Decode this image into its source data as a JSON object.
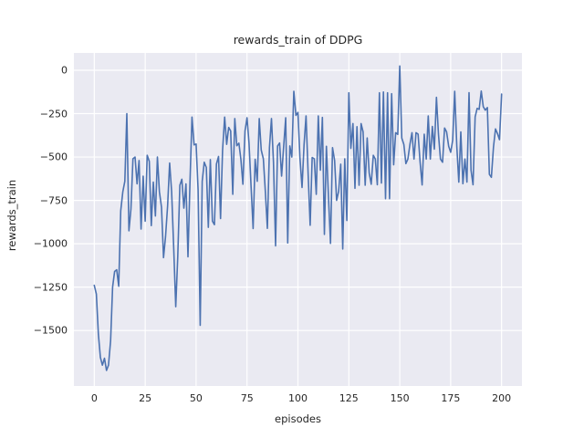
{
  "colors": {
    "figure_bg": "#ffffff",
    "axes_bg": "#eaeaf2",
    "grid": "#ffffff",
    "line": "#4c72b0",
    "text": "#262626"
  },
  "chart_data": {
    "type": "line",
    "title": "rewards_train of DDPG",
    "xlabel": "episodes",
    "ylabel": "rewards_train",
    "grid": true,
    "legend": "none",
    "xlim": [
      -10,
      210
    ],
    "ylim": [
      -1820,
      100
    ],
    "x_tick_values": [
      0,
      25,
      50,
      75,
      100,
      125,
      150,
      175,
      200
    ],
    "x_tick_labels": [
      "0",
      "25",
      "50",
      "75",
      "100",
      "125",
      "150",
      "175",
      "200"
    ],
    "y_tick_values": [
      0,
      -250,
      -500,
      -750,
      -1000,
      -1250,
      -1500
    ],
    "y_tick_labels": [
      "0",
      "−250",
      "−500",
      "−750",
      "−1000",
      "−1250",
      "−1500"
    ],
    "series": [
      {
        "name": "rewards_train",
        "color": "#4c72b0",
        "x_start": 0,
        "x_step": 1,
        "values": [
          -1240,
          -1290,
          -1520,
          -1655,
          -1700,
          -1660,
          -1730,
          -1700,
          -1560,
          -1250,
          -1160,
          -1150,
          -1245,
          -810,
          -700,
          -640,
          -250,
          -925,
          -800,
          -510,
          -500,
          -655,
          -520,
          -915,
          -610,
          -870,
          -490,
          -525,
          -895,
          -645,
          -840,
          -500,
          -700,
          -790,
          -1080,
          -960,
          -780,
          -535,
          -700,
          -1030,
          -1363,
          -1075,
          -663,
          -628,
          -795,
          -655,
          -1075,
          -646,
          -270,
          -430,
          -425,
          -690,
          -1470,
          -640,
          -530,
          -560,
          -905,
          -515,
          -870,
          -890,
          -540,
          -497,
          -855,
          -462,
          -270,
          -427,
          -330,
          -350,
          -715,
          -278,
          -435,
          -420,
          -514,
          -657,
          -350,
          -274,
          -420,
          -675,
          -912,
          -513,
          -640,
          -278,
          -460,
          -510,
          -700,
          -911,
          -445,
          -278,
          -530,
          -1012,
          -436,
          -419,
          -610,
          -436,
          -274,
          -995,
          -436,
          -500,
          -121,
          -260,
          -243,
          -504,
          -676,
          -430,
          -263,
          -600,
          -893,
          -503,
          -510,
          -715,
          -263,
          -576,
          -272,
          -946,
          -438,
          -733,
          -998,
          -446,
          -520,
          -750,
          -698,
          -541,
          -1030,
          -510,
          -866,
          -130,
          -450,
          -307,
          -680,
          -325,
          -663,
          -307,
          -355,
          -663,
          -390,
          -593,
          -657,
          -490,
          -512,
          -660,
          -130,
          -650,
          -125,
          -740,
          -130,
          -740,
          -135,
          -545,
          -360,
          -370,
          25,
          -390,
          -428,
          -538,
          -512,
          -425,
          -360,
          -512,
          -360,
          -368,
          -530,
          -661,
          -368,
          -512,
          -263,
          -512,
          -324,
          -455,
          -156,
          -368,
          -512,
          -530,
          -333,
          -355,
          -438,
          -473,
          -403,
          -121,
          -438,
          -645,
          -355,
          -654,
          -512,
          -645,
          -129,
          -576,
          -660,
          -268,
          -220,
          -225,
          -120,
          -210,
          -230,
          -215,
          -600,
          -617,
          -443,
          -338,
          -365,
          -400,
          -137
        ]
      }
    ]
  }
}
